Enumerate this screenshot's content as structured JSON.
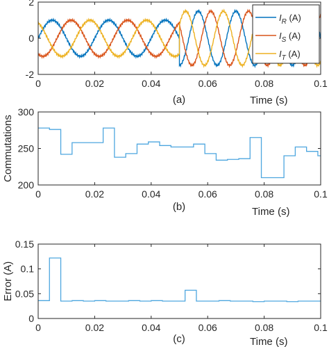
{
  "colors": {
    "axis": "#262626",
    "blue": "#0072BD",
    "orange": "#D95319",
    "yellow": "#EDB120",
    "stair": "#4DA6DF"
  },
  "chart_data": [
    {
      "type": "line",
      "panel_label": "(a)",
      "xlabel": "Time (s)",
      "ylabel": "",
      "xlim": [
        0,
        0.1
      ],
      "ylim": [
        -2,
        2
      ],
      "xticks": [
        "0",
        "0.02",
        "0.04",
        "0.06",
        "0.08",
        "0.1"
      ],
      "yticks": [
        "-2",
        "0",
        "2"
      ],
      "grid": false,
      "legend": "top-right",
      "series": [
        {
          "name": "I",
          "sub": "R",
          "unit": "(A)",
          "color": "blue",
          "segments": [
            {
              "t0": 0,
              "t1": 0.05,
              "amplitude": 1.0,
              "frequency_hz": 50,
              "phase_deg": 0
            },
            {
              "t0": 0.05,
              "t1": 0.1,
              "amplitude": 1.5,
              "frequency_hz": 75,
              "phase_deg": 0
            }
          ]
        },
        {
          "name": "I",
          "sub": "S",
          "unit": "(A)",
          "color": "orange",
          "segments": [
            {
              "t0": 0,
              "t1": 0.05,
              "amplitude": 1.0,
              "frequency_hz": 50,
              "phase_deg": -120
            },
            {
              "t0": 0.05,
              "t1": 0.1,
              "amplitude": 1.5,
              "frequency_hz": 75,
              "phase_deg": -120
            }
          ]
        },
        {
          "name": "I",
          "sub": "T",
          "unit": "(A)",
          "color": "yellow",
          "segments": [
            {
              "t0": 0,
              "t1": 0.05,
              "amplitude": 1.0,
              "frequency_hz": 50,
              "phase_deg": 120
            },
            {
              "t0": 0.05,
              "t1": 0.1,
              "amplitude": 1.5,
              "frequency_hz": 75,
              "phase_deg": 120
            }
          ]
        }
      ]
    },
    {
      "type": "line",
      "panel_label": "(b)",
      "xlabel": "Time (s)",
      "ylabel": "Commutations",
      "xlim": [
        0,
        0.1
      ],
      "ylim": [
        200,
        300
      ],
      "xticks": [
        "0",
        "0.02",
        "0.04",
        "0.06",
        "0.08",
        "0.1"
      ],
      "yticks": [
        "200",
        "250",
        "300"
      ],
      "grid": false,
      "step": true,
      "series": [
        {
          "color": "stair",
          "x": [
            0,
            0.004,
            0.008,
            0.012,
            0.019,
            0.023,
            0.027,
            0.031,
            0.035,
            0.039,
            0.043,
            0.047,
            0.051,
            0.055,
            0.059,
            0.063,
            0.067,
            0.071,
            0.075,
            0.079,
            0.083,
            0.087,
            0.091,
            0.095,
            0.099
          ],
          "values": [
            278,
            276,
            242,
            258,
            258,
            278,
            238,
            243,
            256,
            259,
            254,
            252,
            252,
            256,
            243,
            234,
            235,
            236,
            265,
            210,
            210,
            240,
            252,
            246,
            240
          ]
        }
      ]
    },
    {
      "type": "line",
      "panel_label": "(c)",
      "xlabel": "Time (s)",
      "ylabel": "Error (A)",
      "xlim": [
        0,
        0.1
      ],
      "ylim": [
        0,
        0.15
      ],
      "xticks": [
        "0",
        "0.02",
        "0.04",
        "0.06",
        "0.08",
        "0.1"
      ],
      "yticks": [
        "0",
        "0.05",
        "0.1",
        "0.15"
      ],
      "grid": false,
      "step": true,
      "series": [
        {
          "color": "stair",
          "x": [
            0,
            0.004,
            0.008,
            0.012,
            0.016,
            0.02,
            0.024,
            0.028,
            0.032,
            0.036,
            0.04,
            0.044,
            0.048,
            0.052,
            0.056,
            0.06,
            0.064,
            0.068,
            0.072,
            0.076,
            0.08,
            0.084,
            0.088,
            0.092,
            0.096
          ],
          "values": [
            0.036,
            0.122,
            0.035,
            0.036,
            0.035,
            0.036,
            0.035,
            0.035,
            0.036,
            0.035,
            0.036,
            0.035,
            0.035,
            0.057,
            0.035,
            0.035,
            0.036,
            0.035,
            0.035,
            0.034,
            0.035,
            0.035,
            0.034,
            0.035,
            0.035
          ]
        }
      ]
    }
  ]
}
